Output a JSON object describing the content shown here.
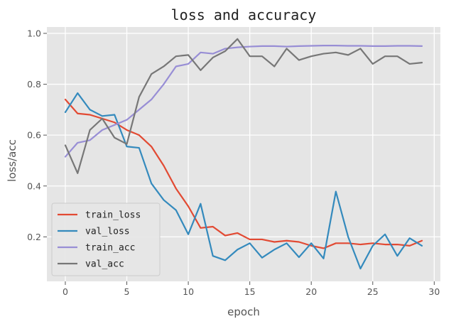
{
  "chart_data": {
    "type": "line",
    "title": "loss and accuracy",
    "xlabel": "epoch",
    "ylabel": "loss/acc",
    "xlim": [
      -1.5,
      30.5
    ],
    "ylim": [
      0.025,
      1.025
    ],
    "xticks": [
      0,
      5,
      10,
      15,
      20,
      25,
      30
    ],
    "yticks": [
      0.2,
      0.4,
      0.6,
      0.8,
      1.0
    ],
    "grid": true,
    "background": "#e5e5e5",
    "grid_color": "#ffffff",
    "legend_position": "lower left",
    "x": [
      0,
      1,
      2,
      3,
      4,
      5,
      6,
      7,
      8,
      9,
      10,
      11,
      12,
      13,
      14,
      15,
      16,
      17,
      18,
      19,
      20,
      21,
      22,
      23,
      24,
      25,
      26,
      27,
      28,
      29
    ],
    "series": [
      {
        "name": "train_loss",
        "color": "#e24a33",
        "values": [
          0.74,
          0.685,
          0.68,
          0.665,
          0.65,
          0.62,
          0.6,
          0.555,
          0.48,
          0.39,
          0.32,
          0.235,
          0.24,
          0.205,
          0.215,
          0.19,
          0.19,
          0.18,
          0.185,
          0.18,
          0.165,
          0.155,
          0.175,
          0.175,
          0.17,
          0.175,
          0.17,
          0.17,
          0.165,
          0.185
        ]
      },
      {
        "name": "val_loss",
        "color": "#348abd",
        "values": [
          0.69,
          0.765,
          0.7,
          0.675,
          0.68,
          0.555,
          0.55,
          0.41,
          0.345,
          0.305,
          0.21,
          0.33,
          0.125,
          0.108,
          0.15,
          0.175,
          0.118,
          0.15,
          0.175,
          0.12,
          0.175,
          0.115,
          0.378,
          0.2,
          0.075,
          0.165,
          0.21,
          0.125,
          0.195,
          0.165
        ]
      },
      {
        "name": "train_acc",
        "color": "#988ed5",
        "values": [
          0.515,
          0.57,
          0.58,
          0.62,
          0.64,
          0.66,
          0.7,
          0.74,
          0.8,
          0.87,
          0.88,
          0.925,
          0.92,
          0.94,
          0.945,
          0.948,
          0.95,
          0.95,
          0.948,
          0.95,
          0.951,
          0.952,
          0.952,
          0.951,
          0.951,
          0.95,
          0.95,
          0.951,
          0.951,
          0.95
        ]
      },
      {
        "name": "val_acc",
        "color": "#777777",
        "values": [
          0.56,
          0.45,
          0.62,
          0.665,
          0.59,
          0.565,
          0.75,
          0.84,
          0.87,
          0.91,
          0.915,
          0.855,
          0.905,
          0.93,
          0.978,
          0.91,
          0.91,
          0.87,
          0.94,
          0.895,
          0.91,
          0.92,
          0.925,
          0.915,
          0.94,
          0.88,
          0.91,
          0.91,
          0.88,
          0.885
        ]
      }
    ]
  }
}
